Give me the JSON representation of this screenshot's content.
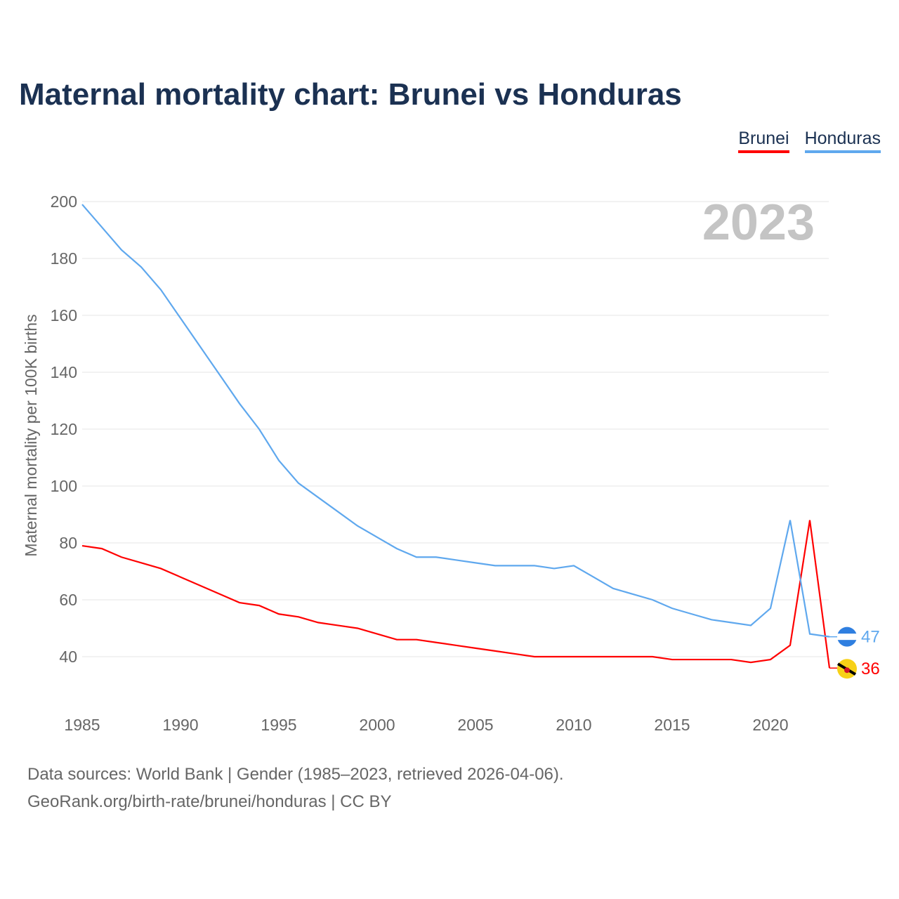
{
  "title": "Maternal mortality chart: Brunei vs Honduras",
  "legend": [
    {
      "label": "Brunei",
      "color": "#ff0000"
    },
    {
      "label": "Honduras",
      "color": "#5fa8ee"
    }
  ],
  "year_label": "2023",
  "source_line1": "Data sources: World Bank | Gender (1985–2023, retrieved 2026-04-06).",
  "source_line2": "GeoRank.org/birth-rate/brunei/honduras | CC BY",
  "chart_data": {
    "type": "line",
    "title": "Maternal mortality chart: Brunei vs Honduras",
    "xlabel": "",
    "ylabel": "Maternal mortality per 100K births",
    "xlim": [
      1985,
      2023
    ],
    "ylim": [
      30,
      200
    ],
    "xticks": [
      1985,
      1990,
      1995,
      2000,
      2005,
      2010,
      2015,
      2020
    ],
    "yticks": [
      40,
      60,
      80,
      100,
      120,
      140,
      160,
      180,
      200
    ],
    "x": [
      1985,
      1986,
      1987,
      1988,
      1989,
      1990,
      1991,
      1992,
      1993,
      1994,
      1995,
      1996,
      1997,
      1998,
      1999,
      2000,
      2001,
      2002,
      2003,
      2004,
      2005,
      2006,
      2007,
      2008,
      2009,
      2010,
      2011,
      2012,
      2013,
      2014,
      2015,
      2016,
      2017,
      2018,
      2019,
      2020,
      2021,
      2022,
      2023
    ],
    "series": [
      {
        "name": "Brunei",
        "color": "#ff0000",
        "end_label": "36",
        "values": [
          79,
          78,
          75,
          73,
          71,
          68,
          65,
          62,
          59,
          58,
          55,
          54,
          52,
          51,
          50,
          48,
          46,
          46,
          45,
          44,
          43,
          42,
          41,
          40,
          40,
          40,
          40,
          40,
          40,
          40,
          39,
          39,
          39,
          39,
          38,
          39,
          44,
          88,
          36
        ]
      },
      {
        "name": "Honduras",
        "color": "#5fa8ee",
        "end_label": "47",
        "values": [
          199,
          191,
          183,
          177,
          169,
          159,
          149,
          139,
          129,
          120,
          109,
          101,
          96,
          91,
          86,
          82,
          78,
          75,
          75,
          74,
          73,
          72,
          72,
          72,
          71,
          72,
          68,
          64,
          62,
          60,
          57,
          55,
          53,
          52,
          51,
          57,
          88,
          48,
          47
        ]
      }
    ],
    "grid": true,
    "legend_position": "top-right"
  }
}
